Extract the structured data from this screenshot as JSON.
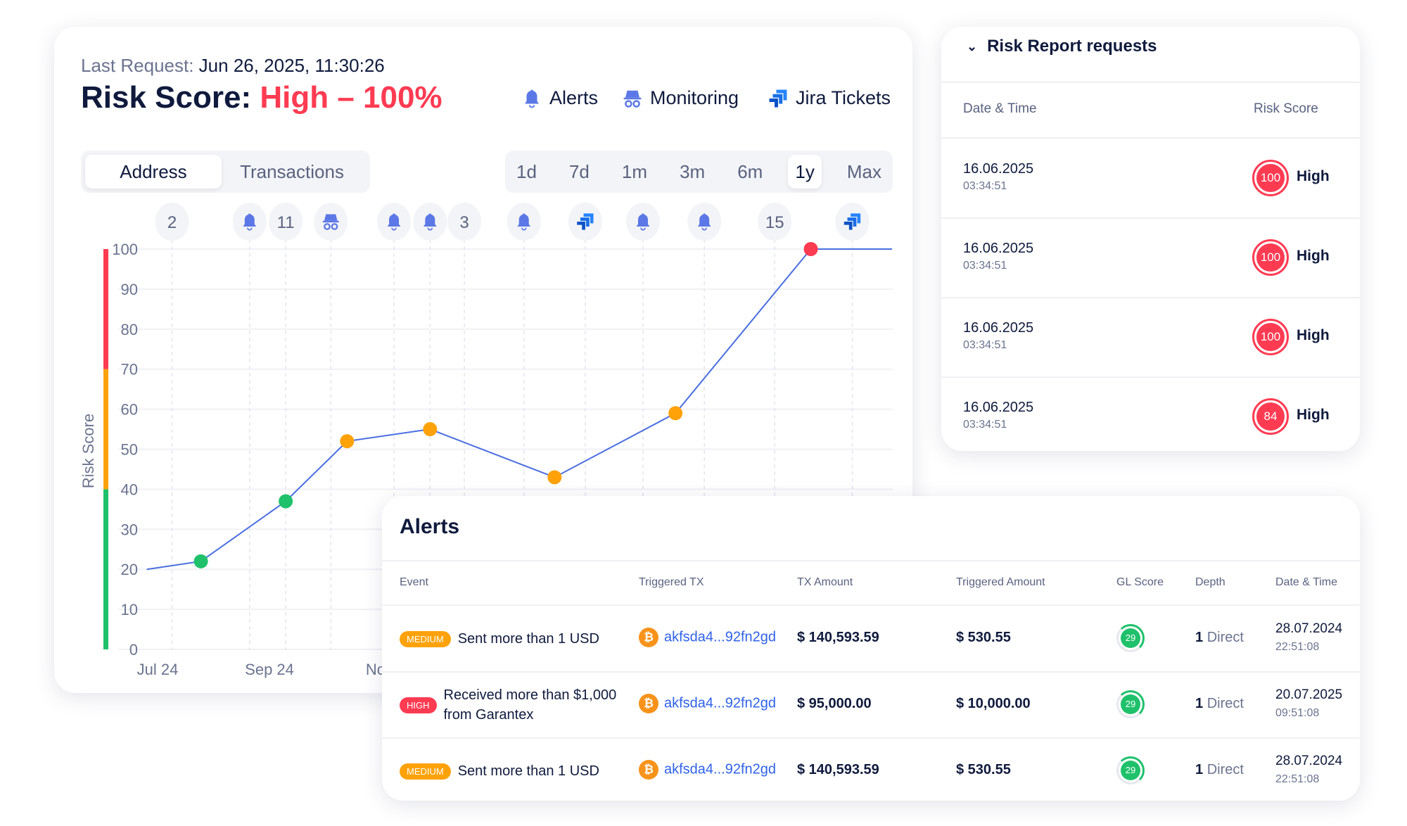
{
  "main": {
    "last_request_label": "Last Request:",
    "last_request_value": "Jun 26, 2025, 11:30:26",
    "title_label": "Risk Score:",
    "title_value": "High – 100%",
    "legend": [
      {
        "label": "Alerts",
        "icon": "bell-icon"
      },
      {
        "label": "Monitoring",
        "icon": "spy-icon"
      },
      {
        "label": "Jira Tickets",
        "icon": "jira-icon"
      }
    ],
    "view_tabs": [
      {
        "label": "Address",
        "active": true
      },
      {
        "label": "Transactions",
        "active": false
      }
    ],
    "ranges": [
      {
        "label": "1d"
      },
      {
        "label": "7d"
      },
      {
        "label": "1m"
      },
      {
        "label": "3m"
      },
      {
        "label": "6m"
      },
      {
        "label": "1y",
        "active": true
      },
      {
        "label": "Max"
      }
    ]
  },
  "colors": {
    "accent": "#4a6ee0",
    "high": "#ff3b52",
    "medium": "#ffa20a",
    "low": "#1fc16b",
    "link": "#2f62e8"
  },
  "chart_data": {
    "type": "line",
    "ylabel": "Risk Score",
    "ylim": [
      0,
      100
    ],
    "yticks": [
      0,
      10,
      20,
      30,
      40,
      50,
      60,
      70,
      80,
      90,
      100
    ],
    "xticks": [
      {
        "label": "Jul 24",
        "date": "2024-07-01"
      },
      {
        "label": "Sep 24",
        "date": "2024-09-01"
      },
      {
        "label": "Nov",
        "date": "2024-11-01"
      }
    ],
    "grid": true,
    "zones": [
      {
        "from": 0,
        "to": 40,
        "color": "#1fc16b"
      },
      {
        "from": 40,
        "to": 70,
        "color": "#ffa20a"
      },
      {
        "from": 70,
        "to": 100,
        "color": "#ff3b52"
      }
    ],
    "points": [
      {
        "date": "2024-06-25",
        "value": 20,
        "marker": false
      },
      {
        "date": "2024-07-25",
        "value": 22,
        "marker": true
      },
      {
        "date": "2024-09-10",
        "value": 37,
        "marker": true
      },
      {
        "date": "2024-10-14",
        "value": 52,
        "marker": true
      },
      {
        "date": "2024-11-29",
        "value": 55,
        "marker": true
      },
      {
        "date": "2025-02-06",
        "value": 43,
        "marker": true
      },
      {
        "date": "2025-04-14",
        "value": 59,
        "marker": true
      },
      {
        "date": "2025-06-28",
        "value": 100,
        "marker": true
      },
      {
        "date": "2025-08-12",
        "value": 100,
        "marker": false
      }
    ],
    "events": [
      {
        "date": "2024-07-09",
        "type": "count",
        "label": "2"
      },
      {
        "date": "2024-08-21",
        "type": "alert"
      },
      {
        "date": "2024-09-10",
        "type": "count",
        "label": "11"
      },
      {
        "date": "2024-10-05",
        "type": "monitoring"
      },
      {
        "date": "2024-11-09",
        "type": "alert"
      },
      {
        "date": "2024-11-29",
        "type": "alert"
      },
      {
        "date": "2024-12-18",
        "type": "count",
        "label": "3"
      },
      {
        "date": "2025-01-20",
        "type": "alert"
      },
      {
        "date": "2025-02-23",
        "type": "jira"
      },
      {
        "date": "2025-03-27",
        "type": "alert"
      },
      {
        "date": "2025-04-30",
        "type": "alert"
      },
      {
        "date": "2025-06-08",
        "type": "count",
        "label": "15"
      },
      {
        "date": "2025-07-21",
        "type": "jira"
      }
    ]
  },
  "report": {
    "title": "Risk Report requests",
    "headers": {
      "date": "Date & Time",
      "score": "Risk Score"
    },
    "rows": [
      {
        "date": "16.06.2025",
        "time": "03:34:51",
        "score": "100",
        "level": "High"
      },
      {
        "date": "16.06.2025",
        "time": "03:34:51",
        "score": "100",
        "level": "High"
      },
      {
        "date": "16.06.2025",
        "time": "03:34:51",
        "score": "100",
        "level": "High"
      },
      {
        "date": "16.06.2025",
        "time": "03:34:51",
        "score": "84",
        "level": "High"
      }
    ]
  },
  "alerts": {
    "title": "Alerts",
    "headers": [
      "Event",
      "Triggered TX",
      "TX Amount",
      "Triggered Amount",
      "GL Score",
      "Depth",
      "Date & Time"
    ],
    "rows": [
      {
        "severity": "MEDIUM",
        "event": "Sent more than 1 USD",
        "tx": "akfsda4...92fn2gd",
        "tx_amount": "$ 140,593.59",
        "triggered_amount": "$ 530.55",
        "gl_score": "29",
        "depth_num": "1",
        "depth_label": "Direct",
        "date": "28.07.2024",
        "time": "22:51:08"
      },
      {
        "severity": "HIGH",
        "event": "Received more than $1,000 from Garantex",
        "tx": "akfsda4...92fn2gd",
        "tx_amount": "$ 95,000.00",
        "triggered_amount": "$ 10,000.00",
        "gl_score": "29",
        "depth_num": "1",
        "depth_label": "Direct",
        "date": "20.07.2025",
        "time": "09:51:08"
      },
      {
        "severity": "MEDIUM",
        "event": "Sent more than 1 USD",
        "tx": "akfsda4...92fn2gd",
        "tx_amount": "$ 140,593.59",
        "triggered_amount": "$ 530.55",
        "gl_score": "29",
        "depth_num": "1",
        "depth_label": "Direct",
        "date": "28.07.2024",
        "time": "22:51:08"
      }
    ]
  }
}
